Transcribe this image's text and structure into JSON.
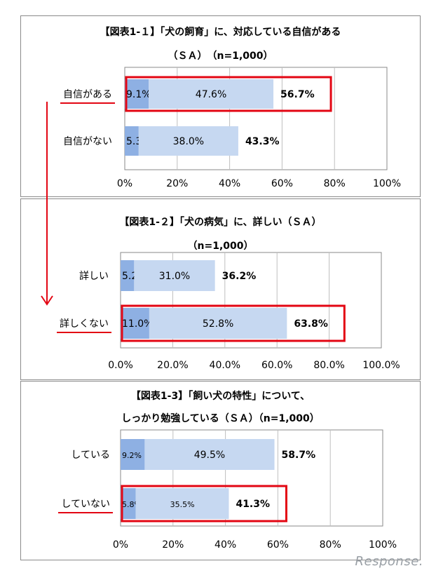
{
  "chart_data": [
    {
      "type": "bar",
      "orientation": "horizontal",
      "stacked": true,
      "title": "【図表1-１】「犬の飼育」に、対応している自信がある",
      "subtitle": "（ＳＡ）　（n=1,000）",
      "categories": [
        "自信がある",
        "自信がない"
      ],
      "series": [
        {
          "values": [
            9.1,
            5.3
          ],
          "labels": [
            "9.1%",
            "5.3%"
          ]
        },
        {
          "values": [
            47.6,
            38.0
          ],
          "labels": [
            "47.6%",
            "38.0%"
          ]
        }
      ],
      "totals": [
        "56.7%",
        "43.3%"
      ],
      "highlighted": [
        "自信がある"
      ],
      "xlim": [
        0,
        100
      ],
      "xticks": [
        "0%",
        "20%",
        "40%",
        "60%",
        "80%",
        "100%"
      ],
      "grid": true
    },
    {
      "type": "bar",
      "orientation": "horizontal",
      "stacked": true,
      "title": "【図表1-２】「犬の病気」に、詳しい（ＳＡ）",
      "subtitle": "（n=1,000）",
      "categories": [
        "詳しい",
        "詳しくない"
      ],
      "series": [
        {
          "values": [
            5.2,
            11.0
          ],
          "labels": [
            "5.2%",
            "11.0%"
          ]
        },
        {
          "values": [
            31.0,
            52.8
          ],
          "labels": [
            "31.0%",
            "52.8%"
          ]
        }
      ],
      "totals": [
        "36.2%",
        "63.8%"
      ],
      "highlighted": [
        "詳しくない"
      ],
      "xlim": [
        0,
        100
      ],
      "xticks": [
        "0.0%",
        "20.0%",
        "40.0%",
        "60.0%",
        "80.0%",
        "100.0%"
      ],
      "grid": true
    },
    {
      "type": "bar",
      "orientation": "horizontal",
      "stacked": true,
      "title": "【図表1-3】「飼い犬の特性」について、",
      "subtitle": "しっかり勉強している（ＳＡ）（n=1,000）",
      "categories": [
        "している",
        "していない"
      ],
      "series": [
        {
          "values": [
            9.2,
            5.8
          ],
          "labels": [
            "9.2%",
            "5.8%"
          ]
        },
        {
          "values": [
            49.5,
            35.5
          ],
          "labels": [
            "49.5%",
            "35.5%"
          ]
        }
      ],
      "totals": [
        "58.7%",
        "41.3%"
      ],
      "highlighted": [
        "していない"
      ],
      "xlim": [
        0,
        100
      ],
      "xticks": [
        "0%",
        "20%",
        "40%",
        "60%",
        "80%",
        "100%"
      ],
      "grid": true
    }
  ],
  "colors": {
    "segment1": "#8eb0e3",
    "segment2": "#c6d8f1",
    "highlight_box": "#e30613",
    "annotation": "#e30613",
    "grid": "#bfbfbf",
    "plot_border": "#8a8a8a"
  },
  "watermark": "Response."
}
